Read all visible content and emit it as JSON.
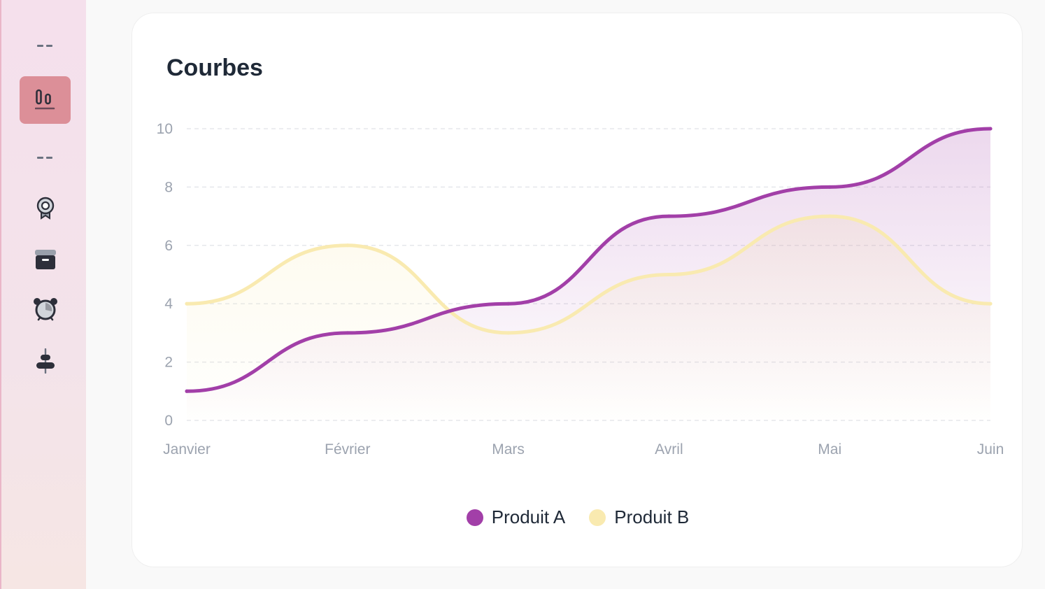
{
  "sidebar": {
    "items": [
      {
        "name": "sidebar-separator"
      },
      {
        "name": "sidebar-item-charts",
        "icon": "bar-chart-icon",
        "active": true
      },
      {
        "name": "sidebar-separator"
      },
      {
        "name": "sidebar-item-badge",
        "icon": "badge-icon"
      },
      {
        "name": "sidebar-item-archive",
        "icon": "archive-icon"
      },
      {
        "name": "sidebar-item-alarm",
        "icon": "alarm-clock-icon"
      },
      {
        "name": "sidebar-item-align",
        "icon": "align-center-icon"
      }
    ]
  },
  "card": {
    "title": "Courbes"
  },
  "colors": {
    "series_a": "#a23fa8",
    "series_b": "#f9eab0",
    "sidebar_active": "#dc8f98",
    "grid": "#e5e7eb"
  },
  "chart_data": {
    "type": "line",
    "title": "Courbes",
    "categories": [
      "Janvier",
      "Février",
      "Mars",
      "Avril",
      "Mai",
      "Juin"
    ],
    "series": [
      {
        "name": "Produit A",
        "values": [
          1,
          3,
          4,
          7,
          8,
          10
        ],
        "color": "#a23fa8"
      },
      {
        "name": "Produit B",
        "values": [
          4,
          6,
          3,
          5,
          7,
          4
        ],
        "color": "#f9eab0"
      }
    ],
    "ylim": [
      0,
      10
    ],
    "yticks": [
      0,
      2,
      4,
      6,
      8,
      10
    ],
    "xlabel": "",
    "ylabel": "",
    "grid": true,
    "legend": "bottom-center",
    "curve": "smooth",
    "area_fill": true
  }
}
